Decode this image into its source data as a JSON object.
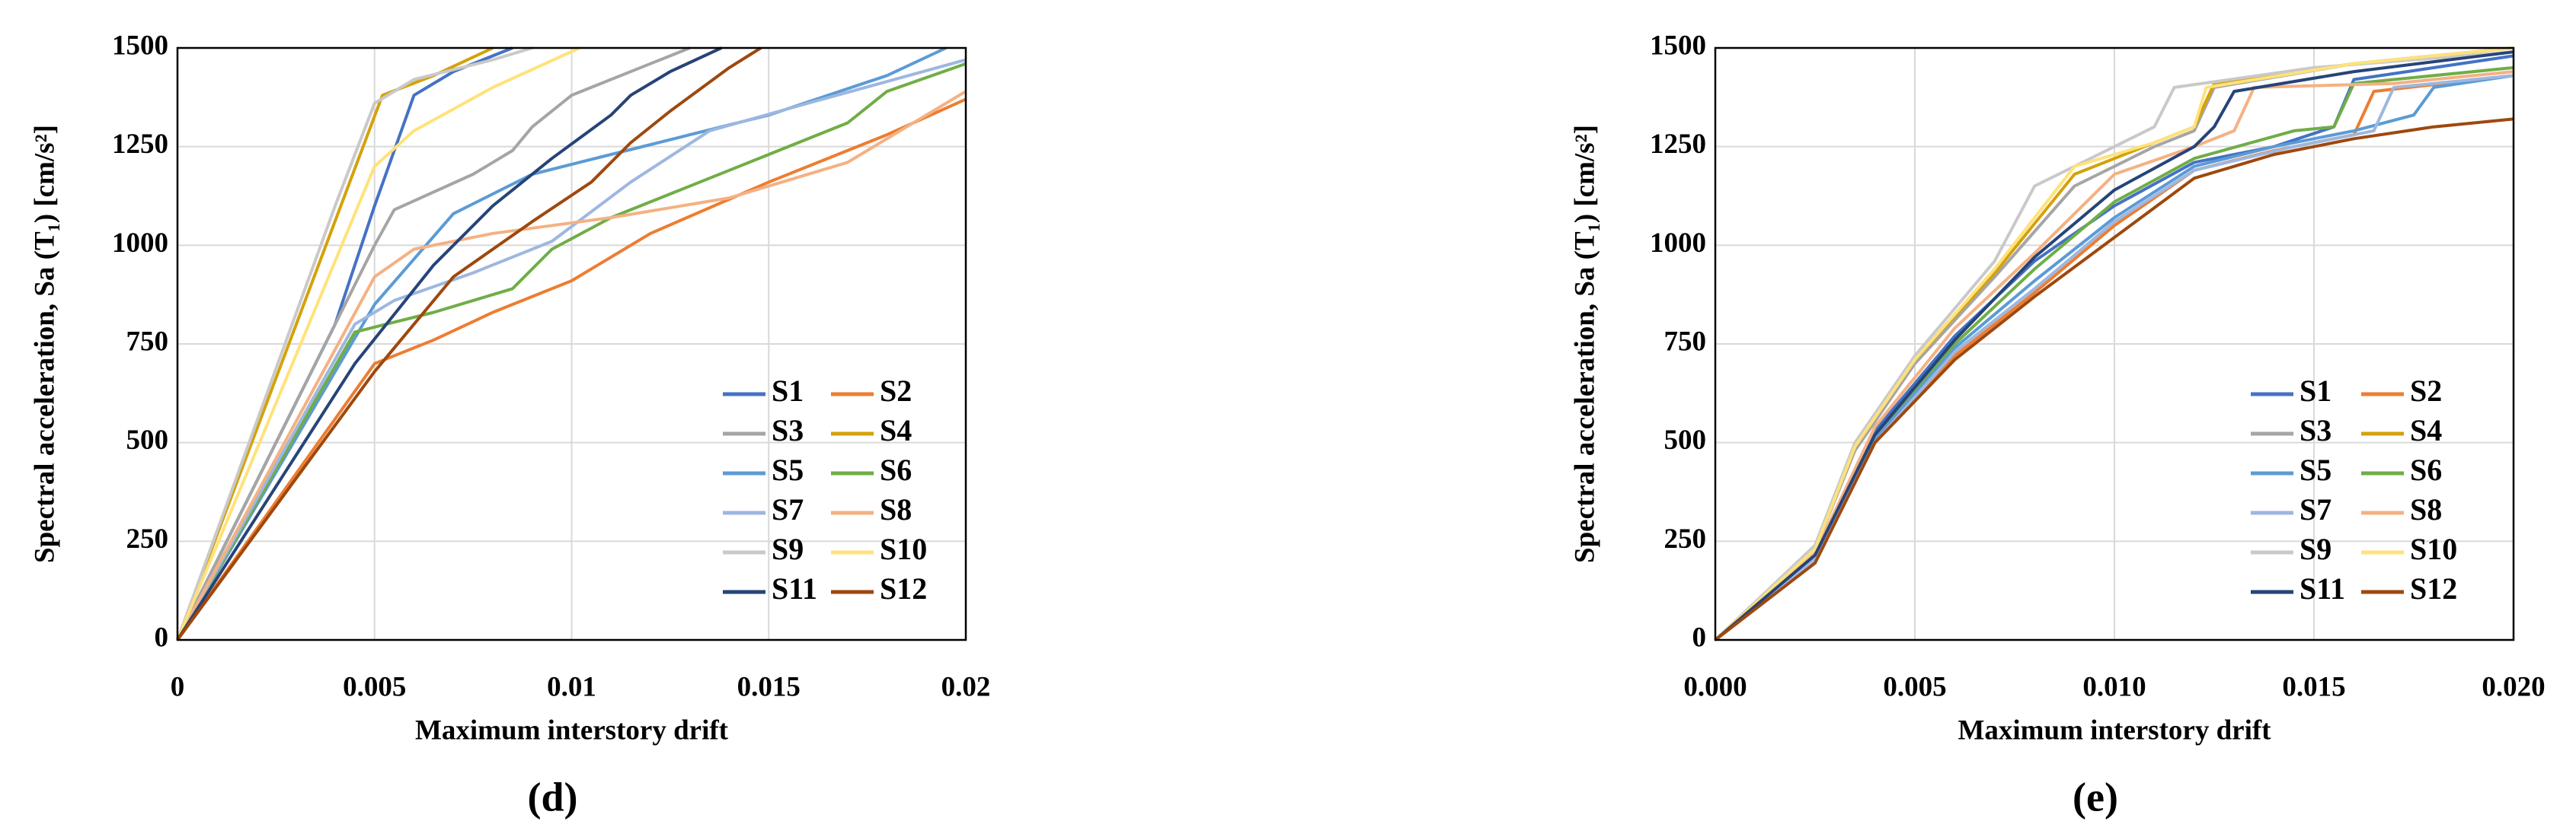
{
  "chart_data": [
    {
      "type": "line",
      "caption": "(d)",
      "x_label": "Maximum interstory drift",
      "y_label": "Spectral acceleration, Sa (T₁) [cm/s²]",
      "xlim": [
        0,
        0.02
      ],
      "xticks": [
        0,
        0.005,
        0.01,
        0.015,
        0.02
      ],
      "ylim": [
        0,
        1500
      ],
      "yticks": [
        0,
        250,
        500,
        750,
        1000,
        1250,
        1500
      ],
      "grid": true,
      "series": [
        {
          "name": "S1",
          "color": "#4472C4",
          "x": [
            0,
            0.004,
            0.005,
            0.006,
            0.007,
            0.008,
            0.0085
          ],
          "values": [
            0,
            800,
            1100,
            1380,
            1440,
            1480,
            1500
          ]
        },
        {
          "name": "S2",
          "color": "#ED7D31",
          "x": [
            0,
            0.005,
            0.0065,
            0.008,
            0.01,
            0.012,
            0.015,
            0.018,
            0.02
          ],
          "values": [
            0,
            700,
            760,
            830,
            910,
            1030,
            1160,
            1280,
            1370
          ]
        },
        {
          "name": "S3",
          "color": "#A5A5A5",
          "x": [
            0,
            0.005,
            0.0055,
            0.0075,
            0.0085,
            0.009,
            0.01,
            0.012,
            0.013
          ],
          "values": [
            0,
            1000,
            1090,
            1180,
            1240,
            1300,
            1380,
            1460,
            1500
          ]
        },
        {
          "name": "S4",
          "color": "#D4A20A",
          "x": [
            0,
            0.0052,
            0.0065,
            0.008
          ],
          "values": [
            0,
            1380,
            1430,
            1500
          ]
        },
        {
          "name": "S5",
          "color": "#5B9BD5",
          "x": [
            0,
            0.005,
            0.007,
            0.009,
            0.011,
            0.013,
            0.015,
            0.018,
            0.0195
          ],
          "values": [
            0,
            850,
            1080,
            1180,
            1230,
            1280,
            1330,
            1430,
            1500
          ]
        },
        {
          "name": "S6",
          "color": "#70AD47",
          "x": [
            0,
            0.0045,
            0.0065,
            0.0085,
            0.0095,
            0.011,
            0.014,
            0.017,
            0.018,
            0.02
          ],
          "values": [
            0,
            780,
            830,
            890,
            990,
            1070,
            1190,
            1310,
            1390,
            1460
          ]
        },
        {
          "name": "S7",
          "color": "#9DB7E0",
          "x": [
            0,
            0.0045,
            0.0055,
            0.0075,
            0.0095,
            0.0115,
            0.0135,
            0.016,
            0.02
          ],
          "values": [
            0,
            800,
            860,
            930,
            1010,
            1160,
            1290,
            1360,
            1470
          ]
        },
        {
          "name": "S8",
          "color": "#F4B183",
          "x": [
            0,
            0.005,
            0.006,
            0.008,
            0.011,
            0.014,
            0.017,
            0.0185,
            0.02
          ],
          "values": [
            0,
            920,
            990,
            1030,
            1070,
            1120,
            1210,
            1300,
            1390
          ]
        },
        {
          "name": "S9",
          "color": "#C9C9C9",
          "x": [
            0,
            0.004,
            0.005,
            0.006,
            0.008,
            0.009
          ],
          "values": [
            0,
            1100,
            1360,
            1420,
            1470,
            1500
          ]
        },
        {
          "name": "S10",
          "color": "#FFE27A",
          "x": [
            0,
            0.005,
            0.006,
            0.008,
            0.0102
          ],
          "values": [
            0,
            1200,
            1290,
            1400,
            1500
          ]
        },
        {
          "name": "S11",
          "color": "#264478",
          "x": [
            0,
            0.0045,
            0.0065,
            0.008,
            0.0095,
            0.011,
            0.0115,
            0.0125,
            0.0138
          ],
          "values": [
            0,
            700,
            950,
            1100,
            1220,
            1330,
            1380,
            1440,
            1500
          ]
        },
        {
          "name": "S12",
          "color": "#9E480E",
          "x": [
            0,
            0.005,
            0.007,
            0.009,
            0.0105,
            0.0115,
            0.0125,
            0.014,
            0.0148
          ],
          "values": [
            0,
            680,
            920,
            1060,
            1160,
            1260,
            1340,
            1450,
            1500
          ]
        }
      ]
    },
    {
      "type": "line",
      "caption": "(e)",
      "x_label": "Maximum interstory drift",
      "y_label": "Spectral acceleration, Sa (T₁) [cm/s²]",
      "xlim": [
        0,
        0.02
      ],
      "xticks": [
        {
          "value": 0,
          "label": "0.000"
        },
        {
          "value": 0.005,
          "label": "0.005"
        },
        {
          "value": 0.01,
          "label": "0.010"
        },
        {
          "value": 0.015,
          "label": "0.015"
        },
        {
          "value": 0.02,
          "label": "0.020"
        }
      ],
      "ylim": [
        0,
        1500
      ],
      "yticks": [
        0,
        250,
        500,
        750,
        1000,
        1250,
        1500
      ],
      "grid": true,
      "series": [
        {
          "name": "S1",
          "color": "#4472C4",
          "x": [
            0,
            0.0025,
            0.004,
            0.006,
            0.008,
            0.01,
            0.012,
            0.014,
            0.0155,
            0.016,
            0.02
          ],
          "values": [
            0,
            210,
            530,
            770,
            960,
            1100,
            1210,
            1250,
            1300,
            1420,
            1480
          ]
        },
        {
          "name": "S2",
          "color": "#ED7D31",
          "x": [
            0,
            0.0025,
            0.004,
            0.006,
            0.008,
            0.01,
            0.012,
            0.014,
            0.016,
            0.0165,
            0.02
          ],
          "values": [
            0,
            200,
            500,
            720,
            880,
            1050,
            1190,
            1240,
            1280,
            1390,
            1430
          ]
        },
        {
          "name": "S3",
          "color": "#A5A5A5",
          "x": [
            0,
            0.0025,
            0.0035,
            0.005,
            0.007,
            0.009,
            0.011,
            0.012,
            0.0125,
            0.016,
            0.02
          ],
          "values": [
            0,
            230,
            480,
            700,
            920,
            1150,
            1250,
            1290,
            1400,
            1460,
            1500
          ]
        },
        {
          "name": "S4",
          "color": "#D4A20A",
          "x": [
            0,
            0.0025,
            0.0035,
            0.005,
            0.007,
            0.009,
            0.011,
            0.012,
            0.0125,
            0.016,
            0.02
          ],
          "values": [
            0,
            230,
            490,
            710,
            930,
            1180,
            1260,
            1300,
            1410,
            1460,
            1500
          ]
        },
        {
          "name": "S5",
          "color": "#5B9BD5",
          "x": [
            0,
            0.0025,
            0.004,
            0.006,
            0.008,
            0.01,
            0.012,
            0.014,
            0.016,
            0.0175,
            0.018,
            0.02
          ],
          "values": [
            0,
            210,
            510,
            740,
            910,
            1070,
            1200,
            1250,
            1290,
            1330,
            1400,
            1430
          ]
        },
        {
          "name": "S6",
          "color": "#70AD47",
          "x": [
            0,
            0.0025,
            0.004,
            0.006,
            0.008,
            0.01,
            0.012,
            0.0145,
            0.0155,
            0.016,
            0.02
          ],
          "values": [
            0,
            210,
            520,
            750,
            940,
            1110,
            1220,
            1290,
            1300,
            1410,
            1450
          ]
        },
        {
          "name": "S7",
          "color": "#9DB7E0",
          "x": [
            0,
            0.0025,
            0.004,
            0.006,
            0.008,
            0.01,
            0.012,
            0.0145,
            0.0165,
            0.017,
            0.02
          ],
          "values": [
            0,
            205,
            500,
            730,
            890,
            1060,
            1190,
            1250,
            1290,
            1400,
            1430
          ]
        },
        {
          "name": "S8",
          "color": "#F4B183",
          "x": [
            0,
            0.0025,
            0.004,
            0.006,
            0.008,
            0.01,
            0.012,
            0.013,
            0.0135,
            0.017,
            0.02
          ],
          "values": [
            0,
            220,
            540,
            790,
            980,
            1180,
            1250,
            1290,
            1400,
            1410,
            1440
          ]
        },
        {
          "name": "S9",
          "color": "#C9C9C9",
          "x": [
            0,
            0.0025,
            0.0035,
            0.005,
            0.007,
            0.008,
            0.01,
            0.011,
            0.0115,
            0.015,
            0.02
          ],
          "values": [
            0,
            240,
            500,
            720,
            960,
            1150,
            1250,
            1300,
            1400,
            1450,
            1490
          ]
        },
        {
          "name": "S10",
          "color": "#FFE27A",
          "x": [
            0,
            0.0025,
            0.0035,
            0.005,
            0.007,
            0.009,
            0.011,
            0.012,
            0.0123,
            0.016,
            0.02
          ],
          "values": [
            0,
            230,
            490,
            710,
            940,
            1200,
            1260,
            1300,
            1400,
            1460,
            1500
          ]
        },
        {
          "name": "S11",
          "color": "#264478",
          "x": [
            0,
            0.0025,
            0.004,
            0.006,
            0.008,
            0.01,
            0.012,
            0.0125,
            0.013,
            0.016,
            0.02
          ],
          "values": [
            0,
            215,
            520,
            760,
            970,
            1140,
            1250,
            1300,
            1390,
            1440,
            1490
          ]
        },
        {
          "name": "S12",
          "color": "#9E480E",
          "x": [
            0,
            0.0025,
            0.004,
            0.006,
            0.008,
            0.01,
            0.012,
            0.014,
            0.016,
            0.018,
            0.02
          ],
          "values": [
            0,
            195,
            500,
            710,
            870,
            1020,
            1170,
            1230,
            1270,
            1300,
            1320
          ]
        }
      ]
    }
  ]
}
